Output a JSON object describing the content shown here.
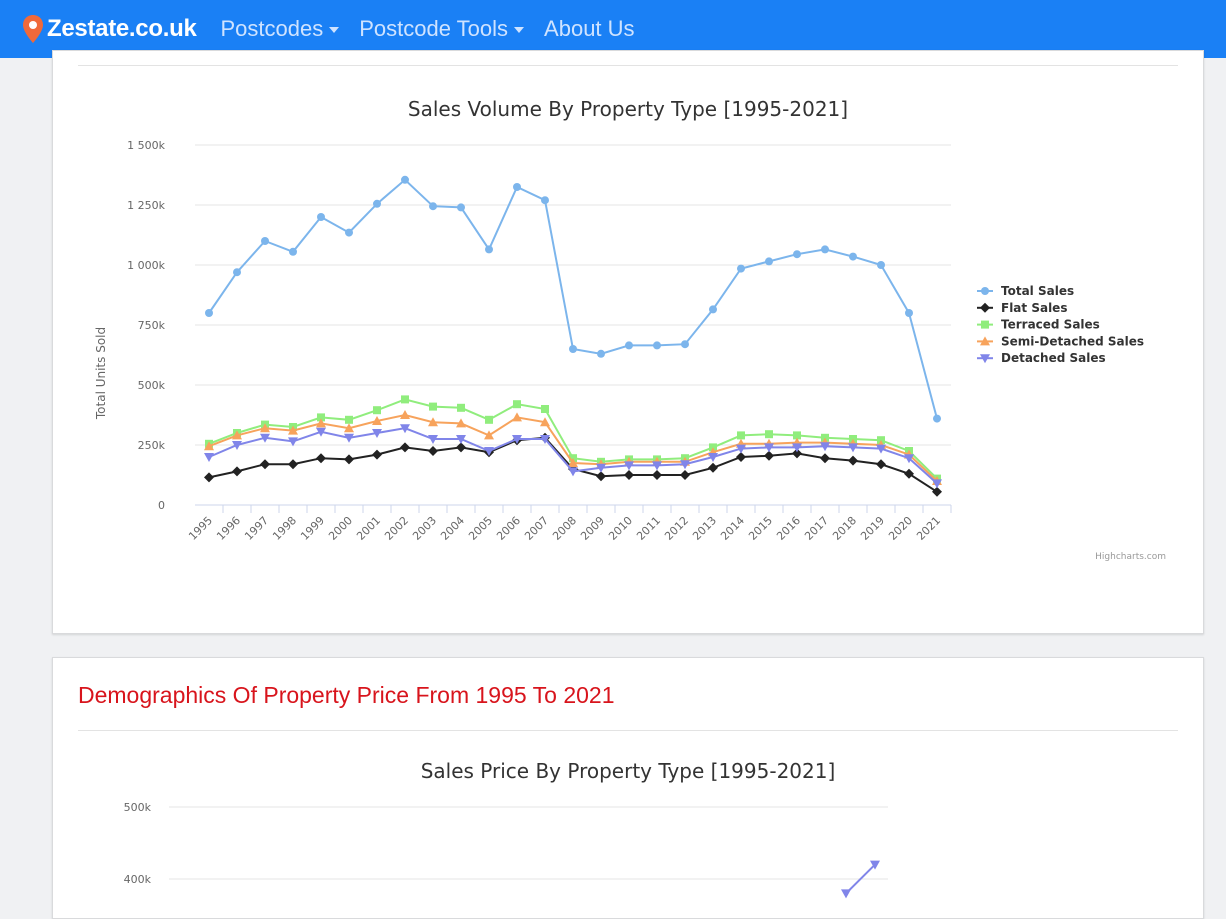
{
  "nav": {
    "brand": "Zestate.co.uk",
    "items": [
      {
        "label": "Postcodes",
        "dropdown": true
      },
      {
        "label": "Postcode Tools",
        "dropdown": true
      },
      {
        "label": "About Us",
        "dropdown": false
      }
    ]
  },
  "colors": {
    "navbar": "#1a80f5",
    "section_title": "#d8141c"
  },
  "credits": "Highcharts.com",
  "section2": {
    "title": "Demographics Of Property Price From 1995 To 2021"
  },
  "chart_data": [
    {
      "type": "line",
      "title": "Sales Volume By Property Type [1995-2021]",
      "xlabel": "",
      "ylabel": "Total Units Sold",
      "ylim": [
        0,
        1500000
      ],
      "yticks": [
        "0",
        "250k",
        "500k",
        "750k",
        "1 000k",
        "1 250k",
        "1 500k"
      ],
      "grid": true,
      "legend_position": "right",
      "categories": [
        "1995",
        "1996",
        "1997",
        "1998",
        "1999",
        "2000",
        "2001",
        "2002",
        "2003",
        "2004",
        "2005",
        "2006",
        "2007",
        "2008",
        "2009",
        "2010",
        "2011",
        "2012",
        "2013",
        "2014",
        "2015",
        "2016",
        "2017",
        "2018",
        "2019",
        "2020",
        "2021"
      ],
      "series": [
        {
          "name": "Total Sales",
          "color": "#7cb5ec",
          "marker": "circle",
          "values": [
            800000,
            970000,
            1100000,
            1055000,
            1200000,
            1135000,
            1255000,
            1355000,
            1245000,
            1240000,
            1065000,
            1325000,
            1270000,
            650000,
            630000,
            665000,
            665000,
            670000,
            815000,
            985000,
            1015000,
            1045000,
            1065000,
            1035000,
            1000000,
            800000,
            360000
          ]
        },
        {
          "name": "Flat Sales",
          "color": "#222222",
          "marker": "diamond",
          "values": [
            115000,
            140000,
            170000,
            170000,
            195000,
            190000,
            210000,
            240000,
            225000,
            240000,
            220000,
            270000,
            280000,
            150000,
            120000,
            125000,
            125000,
            125000,
            155000,
            200000,
            205000,
            215000,
            195000,
            185000,
            170000,
            130000,
            55000
          ]
        },
        {
          "name": "Terraced Sales",
          "color": "#90ed7d",
          "marker": "square",
          "values": [
            255000,
            300000,
            335000,
            325000,
            365000,
            355000,
            395000,
            440000,
            410000,
            405000,
            355000,
            420000,
            400000,
            195000,
            180000,
            190000,
            190000,
            195000,
            240000,
            290000,
            295000,
            290000,
            280000,
            275000,
            270000,
            225000,
            110000
          ]
        },
        {
          "name": "Semi-Detached Sales",
          "color": "#f7a35c",
          "marker": "triangle",
          "values": [
            245000,
            290000,
            320000,
            310000,
            340000,
            320000,
            350000,
            375000,
            345000,
            340000,
            290000,
            365000,
            345000,
            175000,
            170000,
            180000,
            180000,
            180000,
            220000,
            255000,
            255000,
            260000,
            260000,
            255000,
            250000,
            210000,
            100000
          ]
        },
        {
          "name": "Detached Sales",
          "color": "#8085e9",
          "marker": "triangle-down",
          "values": [
            200000,
            250000,
            280000,
            265000,
            305000,
            280000,
            300000,
            320000,
            275000,
            275000,
            225000,
            275000,
            275000,
            140000,
            155000,
            165000,
            165000,
            170000,
            200000,
            235000,
            240000,
            240000,
            245000,
            240000,
            235000,
            195000,
            90000
          ]
        }
      ]
    },
    {
      "type": "line",
      "title": "Sales Price By Property Type [1995-2021]",
      "yticks": [
        "400k",
        "500k"
      ],
      "grid": true,
      "series": [
        {
          "name": "",
          "color": "#8085e9",
          "marker": "triangle-down",
          "points": [
            {
              "y": 380000
            },
            {
              "y": 420000
            }
          ]
        }
      ]
    }
  ]
}
